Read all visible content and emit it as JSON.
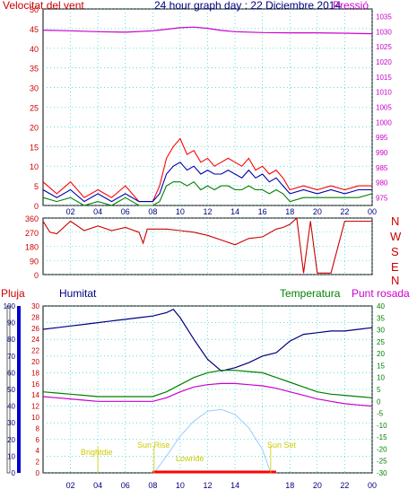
{
  "header": {
    "title": "24 hour graph day : 22 Diciembre 2014",
    "wind_label": "Velocitat del vent",
    "pressure_label": "Pressió"
  },
  "colors": {
    "wind_gust": "#ff0000",
    "wind_avg": "#0000aa",
    "wind_low": "#008000",
    "pressure": "#cc00cc",
    "direction": "#cc0000",
    "rain": "#ff0000",
    "humidity": "#000080",
    "temperature": "#008000",
    "dewpoint": "#cc00cc",
    "solar": "#99ccff",
    "sun_events": "#cccc00",
    "grid": "#00cccc"
  },
  "labels": {
    "rain": "Pluja",
    "humidity": "Humitat",
    "temperature": "Temperatura",
    "dewpoint": "Punt rosada",
    "brightdie": "Brightdie",
    "sun_rise": "Sun Rise",
    "lowride": "Lowride",
    "sun_set": "Sun Set"
  },
  "compass": [
    "N",
    "W",
    "S",
    "E",
    "N"
  ],
  "chart_data": [
    {
      "type": "line",
      "name": "wind-pressure",
      "x_ticks": [
        "02",
        "04",
        "06",
        "08",
        "10",
        "12",
        "14",
        "16",
        "18",
        "20",
        "22",
        "00"
      ],
      "y_left_ticks": [
        "0",
        "5",
        "10",
        "15",
        "20",
        "25",
        "30",
        "35",
        "40",
        "45",
        "50"
      ],
      "y_right_ticks": [
        "975",
        "980",
        "985",
        "990",
        "995",
        "1000",
        "1005",
        "1010",
        "1015",
        "1020",
        "1025",
        "1030",
        "1035"
      ],
      "ylim_left": [
        0,
        50
      ],
      "ylim_right": [
        972.5,
        1037.5
      ],
      "series": [
        {
          "key": "wind_gust",
          "x": [
            0,
            1,
            2,
            3,
            4,
            5,
            6,
            7,
            8,
            8.5,
            9,
            9.5,
            10,
            10.5,
            11,
            11.5,
            12,
            12.5,
            13,
            13.5,
            14,
            14.5,
            15,
            15.5,
            16,
            16.5,
            17,
            17.5,
            18,
            19,
            20,
            21,
            22,
            23,
            24
          ],
          "y": [
            6,
            3,
            6,
            2,
            4,
            2,
            5,
            1,
            1,
            5,
            12,
            15,
            17,
            13,
            14,
            11,
            12,
            10,
            11,
            12,
            11,
            10,
            12,
            9,
            10,
            8,
            9,
            7,
            4,
            5,
            4,
            5,
            4,
            5,
            5
          ]
        },
        {
          "key": "wind_avg",
          "x": [
            0,
            1,
            2,
            3,
            4,
            5,
            6,
            7,
            8,
            8.5,
            9,
            9.5,
            10,
            10.5,
            11,
            11.5,
            12,
            12.5,
            13,
            13.5,
            14,
            14.5,
            15,
            15.5,
            16,
            16.5,
            17,
            17.5,
            18,
            19,
            20,
            21,
            22,
            23,
            24
          ],
          "y": [
            4,
            2,
            4,
            1,
            3,
            1,
            3,
            1,
            1,
            3,
            8,
            10,
            11,
            9,
            10,
            8,
            9,
            8,
            8,
            9,
            8,
            7,
            9,
            7,
            8,
            6,
            7,
            5,
            3,
            4,
            3,
            4,
            3,
            4,
            4
          ]
        },
        {
          "key": "wind_low",
          "x": [
            0,
            1,
            2,
            3,
            4,
            5,
            6,
            7,
            8,
            8.5,
            9,
            9.5,
            10,
            10.5,
            11,
            11.5,
            12,
            12.5,
            13,
            13.5,
            14,
            14.5,
            15,
            15.5,
            16,
            16.5,
            17,
            17.5,
            18,
            19,
            20,
            21,
            22,
            23,
            24
          ],
          "y": [
            2,
            1,
            2,
            0,
            1,
            0,
            2,
            0,
            0,
            1,
            5,
            6,
            6,
            5,
            6,
            4,
            5,
            4,
            5,
            5,
            4,
            4,
            5,
            4,
            4,
            3,
            4,
            3,
            1,
            2,
            2,
            2,
            2,
            2,
            3
          ]
        },
        {
          "key": "pressure",
          "axis": "right",
          "x": [
            0,
            2,
            4,
            6,
            8,
            9,
            10,
            11,
            12,
            13,
            14,
            16,
            18,
            20,
            22,
            24
          ],
          "y": [
            1030.5,
            1030.3,
            1030.0,
            1029.8,
            1030.3,
            1030.8,
            1031.3,
            1031.5,
            1031.1,
            1030.4,
            1030.0,
            1029.7,
            1029.6,
            1029.6,
            1029.5,
            1029.3
          ]
        }
      ]
    },
    {
      "type": "line",
      "name": "wind-direction",
      "y_ticks": [
        "360",
        "270",
        "180",
        "90",
        "0"
      ],
      "ylim": [
        0,
        360
      ],
      "series": [
        {
          "key": "direction",
          "x": [
            0,
            0.5,
            1,
            2,
            3,
            4,
            5,
            6,
            7,
            7.3,
            7.6,
            8,
            9,
            10,
            11,
            12,
            13,
            14,
            15,
            16,
            17,
            17.5,
            18,
            18.5,
            19,
            19.5,
            20,
            21,
            22,
            23,
            24
          ],
          "y": [
            340,
            270,
            260,
            340,
            280,
            310,
            280,
            300,
            270,
            200,
            290,
            290,
            290,
            280,
            270,
            250,
            220,
            190,
            230,
            240,
            290,
            300,
            320,
            360,
            10,
            340,
            10,
            10,
            340,
            340,
            340
          ]
        }
      ]
    },
    {
      "type": "line",
      "name": "temperature-humidity",
      "y_left_ticks": [
        "0",
        "10",
        "20",
        "30",
        "40",
        "50",
        "60",
        "70",
        "80",
        "90",
        "100"
      ],
      "y_rain_ticks": [
        "0",
        "2",
        "4",
        "6",
        "8",
        "10",
        "12",
        "14",
        "16",
        "18",
        "20",
        "22",
        "24",
        "26",
        "28",
        "30"
      ],
      "y_right_ticks": [
        "-30",
        "-25",
        "-20",
        "-15",
        "-10",
        "-5",
        "0",
        "5",
        "10",
        "15",
        "20",
        "25",
        "30",
        "35",
        "40"
      ],
      "ylim_temp": [
        -30,
        40
      ],
      "series": [
        {
          "key": "humidity",
          "x": [
            0,
            1,
            2,
            3,
            4,
            5,
            6,
            7,
            8,
            9,
            9.5,
            10,
            11,
            12,
            13,
            14,
            15,
            16,
            17,
            18,
            19,
            20,
            21,
            22,
            23,
            24
          ],
          "y": [
            86,
            87,
            88,
            89,
            90,
            91,
            92,
            93,
            94,
            96,
            98,
            93,
            80,
            68,
            61,
            63,
            66,
            70,
            72,
            79,
            83,
            84,
            85,
            85,
            86,
            87
          ]
        },
        {
          "key": "temperature",
          "x": [
            0,
            1,
            2,
            3,
            4,
            5,
            6,
            7,
            8,
            9,
            10,
            11,
            12,
            13,
            14,
            15,
            16,
            17,
            18,
            19,
            20,
            21,
            22,
            23,
            24
          ],
          "y": [
            4,
            3.5,
            3,
            2.5,
            2,
            2,
            2,
            2,
            2,
            4,
            7,
            10,
            12,
            13,
            13,
            12.5,
            12,
            10,
            8,
            6,
            4,
            3,
            2.5,
            2,
            1.5
          ]
        },
        {
          "key": "dewpoint",
          "x": [
            0,
            1,
            2,
            3,
            4,
            5,
            6,
            7,
            8,
            9,
            10,
            11,
            12,
            13,
            14,
            15,
            16,
            17,
            18,
            19,
            20,
            21,
            22,
            23,
            24
          ],
          "y": [
            2,
            1.5,
            1,
            0.5,
            0,
            0,
            0,
            0,
            0,
            1.5,
            4,
            6,
            7,
            7.5,
            7.5,
            7,
            6.5,
            5.5,
            4,
            2.5,
            1,
            0,
            -1,
            -1.5,
            -2
          ]
        },
        {
          "key": "solar",
          "x": [
            8.1,
            9,
            10,
            11,
            12,
            13,
            14,
            15,
            16,
            16.6
          ],
          "y": [
            0,
            10,
            22,
            31,
            37,
            38,
            35,
            27,
            14,
            0
          ]
        }
      ],
      "rain_x": [
        8,
        17
      ]
    }
  ]
}
